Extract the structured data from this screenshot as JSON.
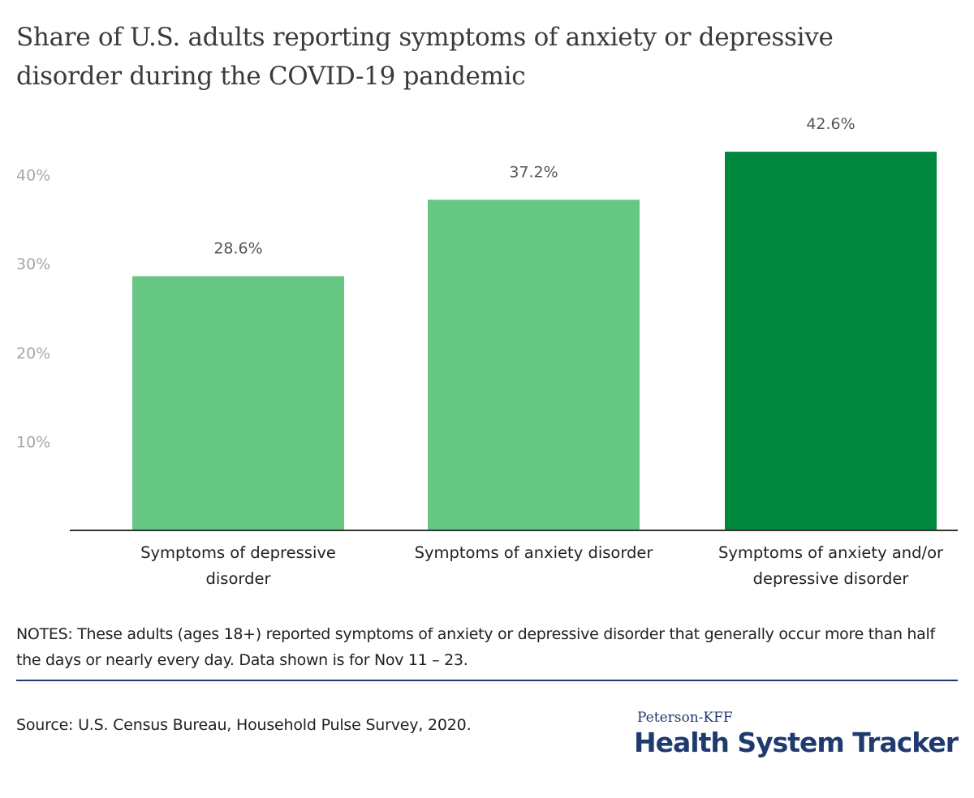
{
  "header": {
    "title": "Share of U.S. adults reporting symptoms of anxiety or depressive disorder during the COVID-19 pandemic"
  },
  "chart_data": {
    "type": "bar",
    "title": "Share of U.S. adults reporting symptoms of anxiety or depressive disorder during the COVID-19 pandemic",
    "xlabel": "",
    "ylabel": "",
    "categories": [
      "Symptoms of depressive disorder",
      "Symptoms of anxiety disorder",
      "Symptoms of anxiety and/or depressive disorder"
    ],
    "values": [
      28.6,
      37.2,
      42.6
    ],
    "value_labels": [
      "28.6%",
      "37.2%",
      "42.6%"
    ],
    "colors": [
      "#66c783",
      "#66c783",
      "#00873e"
    ],
    "ylim": [
      0,
      45
    ],
    "yticks": [
      10,
      20,
      30,
      40
    ],
    "ytick_labels": [
      "10%",
      "20%",
      "30%",
      "40%"
    ],
    "grid": false,
    "legend": "none"
  },
  "footer": {
    "notes": "NOTES: These adults (ages 18+) reported symptoms of anxiety or depressive disorder that generally occur more than half the days or nearly every day. Data shown is for Nov 11 – 23.",
    "source": "Source: U.S. Census Bureau, Household Pulse Survey, 2020.",
    "logo_top": "Peterson-KFF",
    "logo_main": "Health System Tracker",
    "rule_color": "#1f3a6e"
  }
}
